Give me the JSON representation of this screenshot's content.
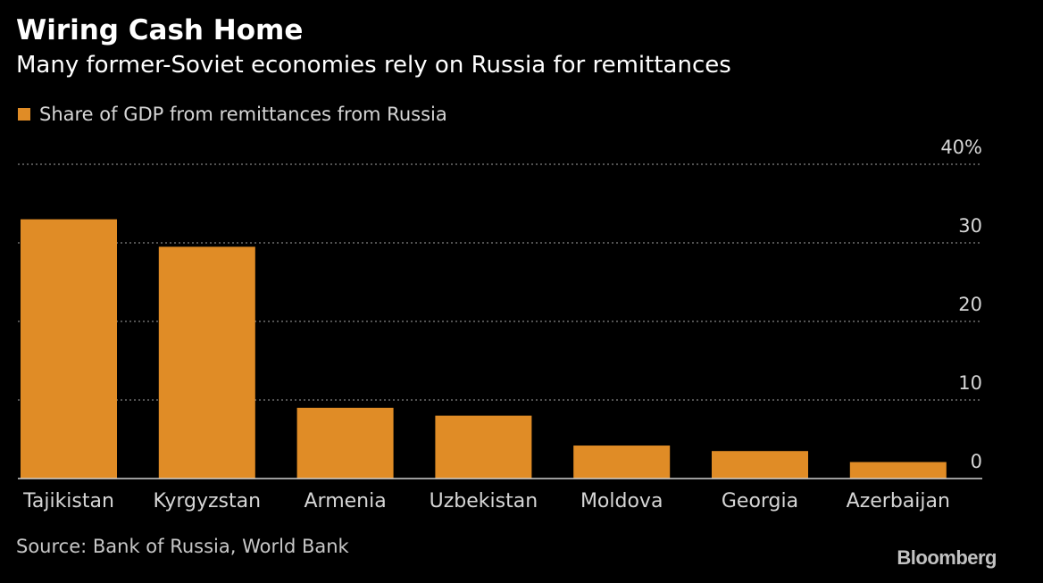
{
  "title": "Wiring Cash Home",
  "subtitle": "Many former-Soviet economies rely on Russia for remittances",
  "source": "Source: Bank of Russia, World Bank",
  "brand": "Bloomberg",
  "colors": {
    "bar": "#e08c26",
    "background": "#000000",
    "grid": "#6e6e6e",
    "text": "#ffffff",
    "muted_text": "#d6d6d6"
  },
  "chart_data": {
    "type": "bar",
    "categories": [
      "Tajikistan",
      "Kyrgyzstan",
      "Armenia",
      "Uzbekistan",
      "Moldova",
      "Georgia",
      "Azerbaijan"
    ],
    "series": [
      {
        "name": "Share of GDP from remittances from Russia",
        "values": [
          33.0,
          29.5,
          9.0,
          8.0,
          4.2,
          3.5,
          2.1
        ]
      }
    ],
    "ylim": [
      0,
      40
    ],
    "y_ticks": [
      0,
      10,
      20,
      30,
      40
    ],
    "y_tick_labels": [
      "0",
      "10",
      "20",
      "30",
      "40%"
    ],
    "y_axis_position": "right",
    "grid": true,
    "legend_position": "top-left",
    "xlabel": "",
    "ylabel": ""
  }
}
